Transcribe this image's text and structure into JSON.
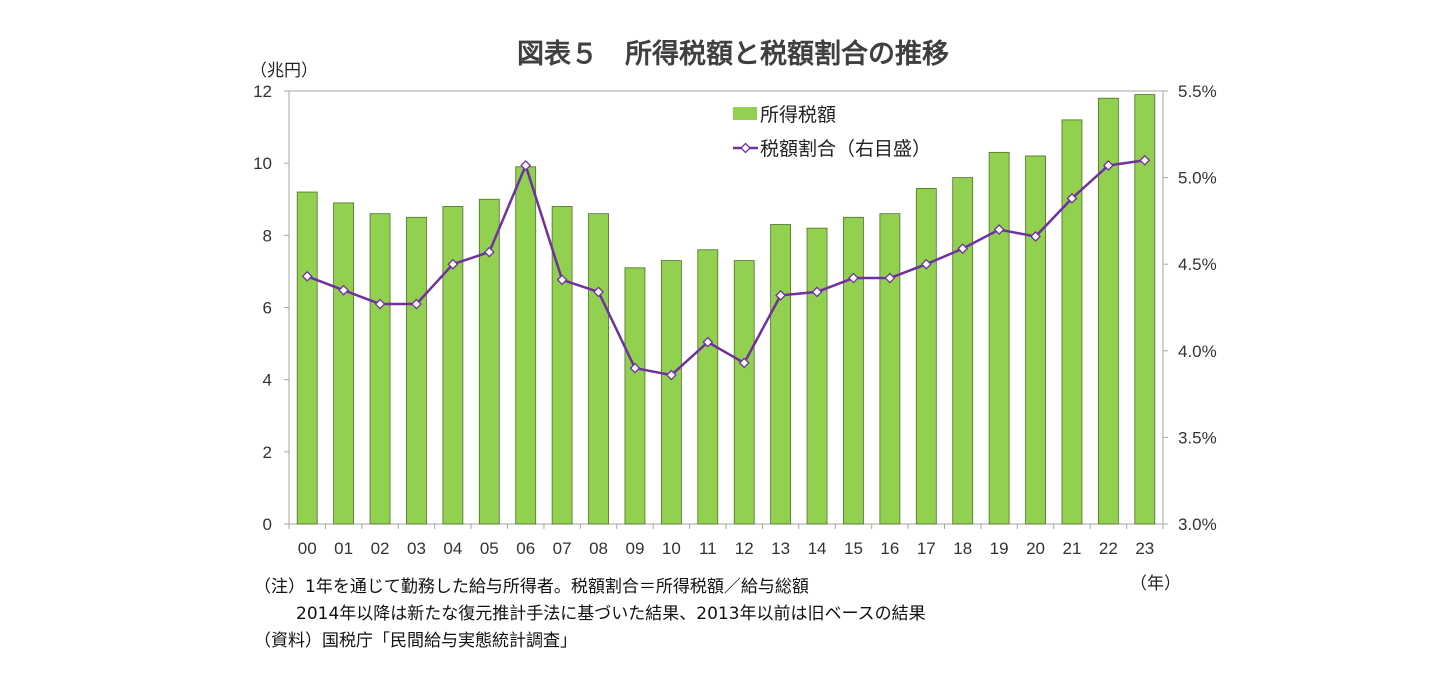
{
  "chart_data": {
    "type": "bar+line",
    "title": "図表５　所得税額と税額割合の推移",
    "left_unit": "（兆円）",
    "x_unit": "（年）",
    "categories": [
      "00",
      "01",
      "02",
      "03",
      "04",
      "05",
      "06",
      "07",
      "08",
      "09",
      "10",
      "11",
      "12",
      "13",
      "14",
      "15",
      "16",
      "17",
      "18",
      "19",
      "20",
      "21",
      "22",
      "23"
    ],
    "series": [
      {
        "name": "所得税額",
        "type": "bar",
        "axis": "left",
        "color": "#92d050",
        "values": [
          9.2,
          8.9,
          8.6,
          8.5,
          8.8,
          9.0,
          9.9,
          8.8,
          8.6,
          7.1,
          7.3,
          7.6,
          7.3,
          8.3,
          8.2,
          8.5,
          8.6,
          9.3,
          9.6,
          10.3,
          10.2,
          11.2,
          11.8,
          11.9
        ]
      },
      {
        "name": "税額割合（右目盛）",
        "type": "line",
        "axis": "right",
        "color": "#7030a0",
        "values": [
          4.43,
          4.35,
          4.27,
          4.27,
          4.5,
          4.57,
          5.07,
          4.41,
          4.34,
          3.9,
          3.86,
          4.05,
          3.93,
          4.32,
          4.34,
          4.42,
          4.42,
          4.5,
          4.59,
          4.7,
          4.66,
          4.88,
          5.07,
          5.1
        ]
      }
    ],
    "left_axis": {
      "min": 0,
      "max": 12,
      "step": 2,
      "ticks": [
        "0",
        "2",
        "4",
        "6",
        "8",
        "10",
        "12"
      ]
    },
    "right_axis": {
      "min": 3.0,
      "max": 5.5,
      "step": 0.5,
      "ticks": [
        "3.0%",
        "3.5%",
        "4.0%",
        "4.5%",
        "5.0%",
        "5.5%"
      ]
    },
    "grid": false,
    "legend_placement": "top-right"
  },
  "notes": {
    "line1": "（注）1年を通じて勤務した給与所得者。税額割合＝所得税額／給与総額",
    "line2": "2014年以降は新たな復元推計手法に基づいた結果、2013年以前は旧ベースの結果",
    "line3": "（資料）国税庁「民間給与実態統計調査」"
  }
}
